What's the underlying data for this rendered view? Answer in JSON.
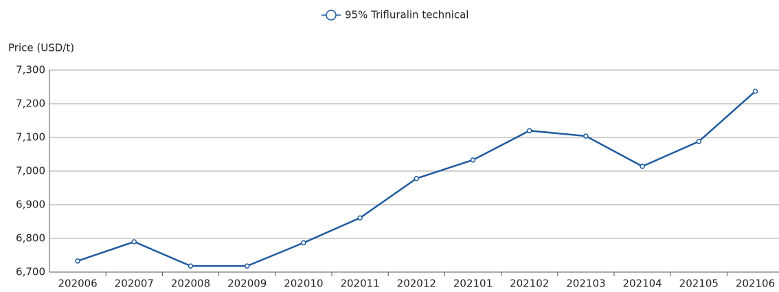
{
  "chart_data": {
    "type": "line",
    "y_label": "Price (USD/t)",
    "categories": [
      "202006",
      "202007",
      "202008",
      "202009",
      "202010",
      "202011",
      "202012",
      "202101",
      "202102",
      "202103",
      "202104",
      "202105",
      "202106"
    ],
    "series": [
      {
        "name": "95% Trifluralin technical",
        "color": "#1f5aa0",
        "values": [
          6733,
          6790,
          6718,
          6718,
          6787,
          6861,
          6978,
          7033,
          7120,
          7104,
          7014,
          7088,
          7237
        ]
      }
    ],
    "ylim": [
      6700,
      7300
    ],
    "yticks": [
      {
        "value": 6700,
        "label": "6,700"
      },
      {
        "value": 6800,
        "label": "6,800"
      },
      {
        "value": 6900,
        "label": "6,900"
      },
      {
        "value": 7000,
        "label": "7,000"
      },
      {
        "value": 7100,
        "label": "7,100"
      },
      {
        "value": 7200,
        "label": "7,200"
      },
      {
        "value": 7300,
        "label": "7,300"
      }
    ],
    "grid": true,
    "legend": "top"
  }
}
